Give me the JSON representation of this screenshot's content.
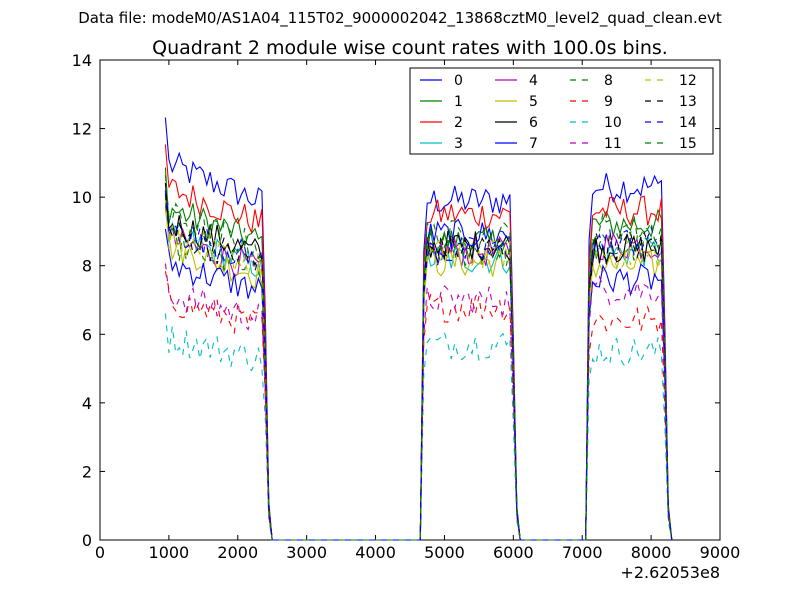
{
  "chart_data": {
    "type": "line",
    "suptitle": "Data file: modeM0/AS1A04_115T02_9000002042_13868cztM0_level2_quad_clean.evt",
    "title": "Quadrant 2 module wise count rates with 100.0s bins.",
    "xlabel": "",
    "ylabel": "",
    "x_offset_label": "+2.62053e8",
    "xlim": [
      0,
      9000
    ],
    "ylim": [
      0,
      14
    ],
    "x_ticks": [
      0,
      1000,
      2000,
      3000,
      4000,
      5000,
      6000,
      7000,
      8000,
      9000
    ],
    "x_tick_labels": [
      "0",
      "1000",
      "2000",
      "3000",
      "4000",
      "5000",
      "6000",
      "7000",
      "8000",
      "9000"
    ],
    "y_ticks": [
      0,
      2,
      4,
      6,
      8,
      10,
      12,
      14
    ],
    "y_tick_labels": [
      "0",
      "2",
      "4",
      "6",
      "8",
      "10",
      "12",
      "14"
    ],
    "grid": false,
    "legend_position": "top-right",
    "legend_columns": 4,
    "segments": [
      {
        "start": 950,
        "end": 2550
      },
      {
        "start": 4650,
        "end": 6150
      },
      {
        "start": 7050,
        "end": 8350
      }
    ],
    "series": [
      {
        "name": "0",
        "color": "#0000ff",
        "dash": "solid",
        "levels": [
          11.0,
          9.9,
          10.3
        ]
      },
      {
        "name": "1",
        "color": "#008000",
        "dash": "solid",
        "levels": [
          9.7,
          8.7,
          9.2
        ]
      },
      {
        "name": "2",
        "color": "#ff0000",
        "dash": "solid",
        "levels": [
          10.3,
          9.5,
          9.6
        ]
      },
      {
        "name": "3",
        "color": "#00bfbf",
        "dash": "solid",
        "levels": [
          8.9,
          8.2,
          8.4
        ]
      },
      {
        "name": "4",
        "color": "#bf00bf",
        "dash": "solid",
        "levels": [
          8.8,
          8.4,
          8.6
        ]
      },
      {
        "name": "5",
        "color": "#bfbf00",
        "dash": "solid",
        "levels": [
          8.6,
          8.1,
          8.0
        ]
      },
      {
        "name": "6",
        "color": "#000000",
        "dash": "solid",
        "levels": [
          9.3,
          8.6,
          8.5
        ]
      },
      {
        "name": "7",
        "color": "#0000ff",
        "dash": "solid",
        "levels": [
          8.1,
          8.9,
          7.6
        ]
      },
      {
        "name": "8",
        "color": "#008000",
        "dash": "dashed",
        "levels": [
          8.7,
          8.4,
          8.5
        ]
      },
      {
        "name": "9",
        "color": "#ff0000",
        "dash": "dashed",
        "levels": [
          7.0,
          6.8,
          6.4
        ]
      },
      {
        "name": "10",
        "color": "#00bfbf",
        "dash": "dashed",
        "levels": [
          5.9,
          5.7,
          5.5
        ]
      },
      {
        "name": "11",
        "color": "#bf00bf",
        "dash": "dashed",
        "levels": [
          7.2,
          7.0,
          7.3
        ]
      },
      {
        "name": "12",
        "color": "#bfbf00",
        "dash": "dashed",
        "levels": [
          8.9,
          8.3,
          8.3
        ]
      },
      {
        "name": "13",
        "color": "#000000",
        "dash": "dashed",
        "levels": [
          9.0,
          8.5,
          8.6
        ]
      },
      {
        "name": "14",
        "color": "#0000ff",
        "dash": "dashed",
        "levels": [
          9.1,
          8.4,
          8.7
        ]
      },
      {
        "name": "15",
        "color": "#008000",
        "dash": "dashed",
        "levels": [
          9.5,
          8.9,
          9.1
        ]
      }
    ]
  }
}
